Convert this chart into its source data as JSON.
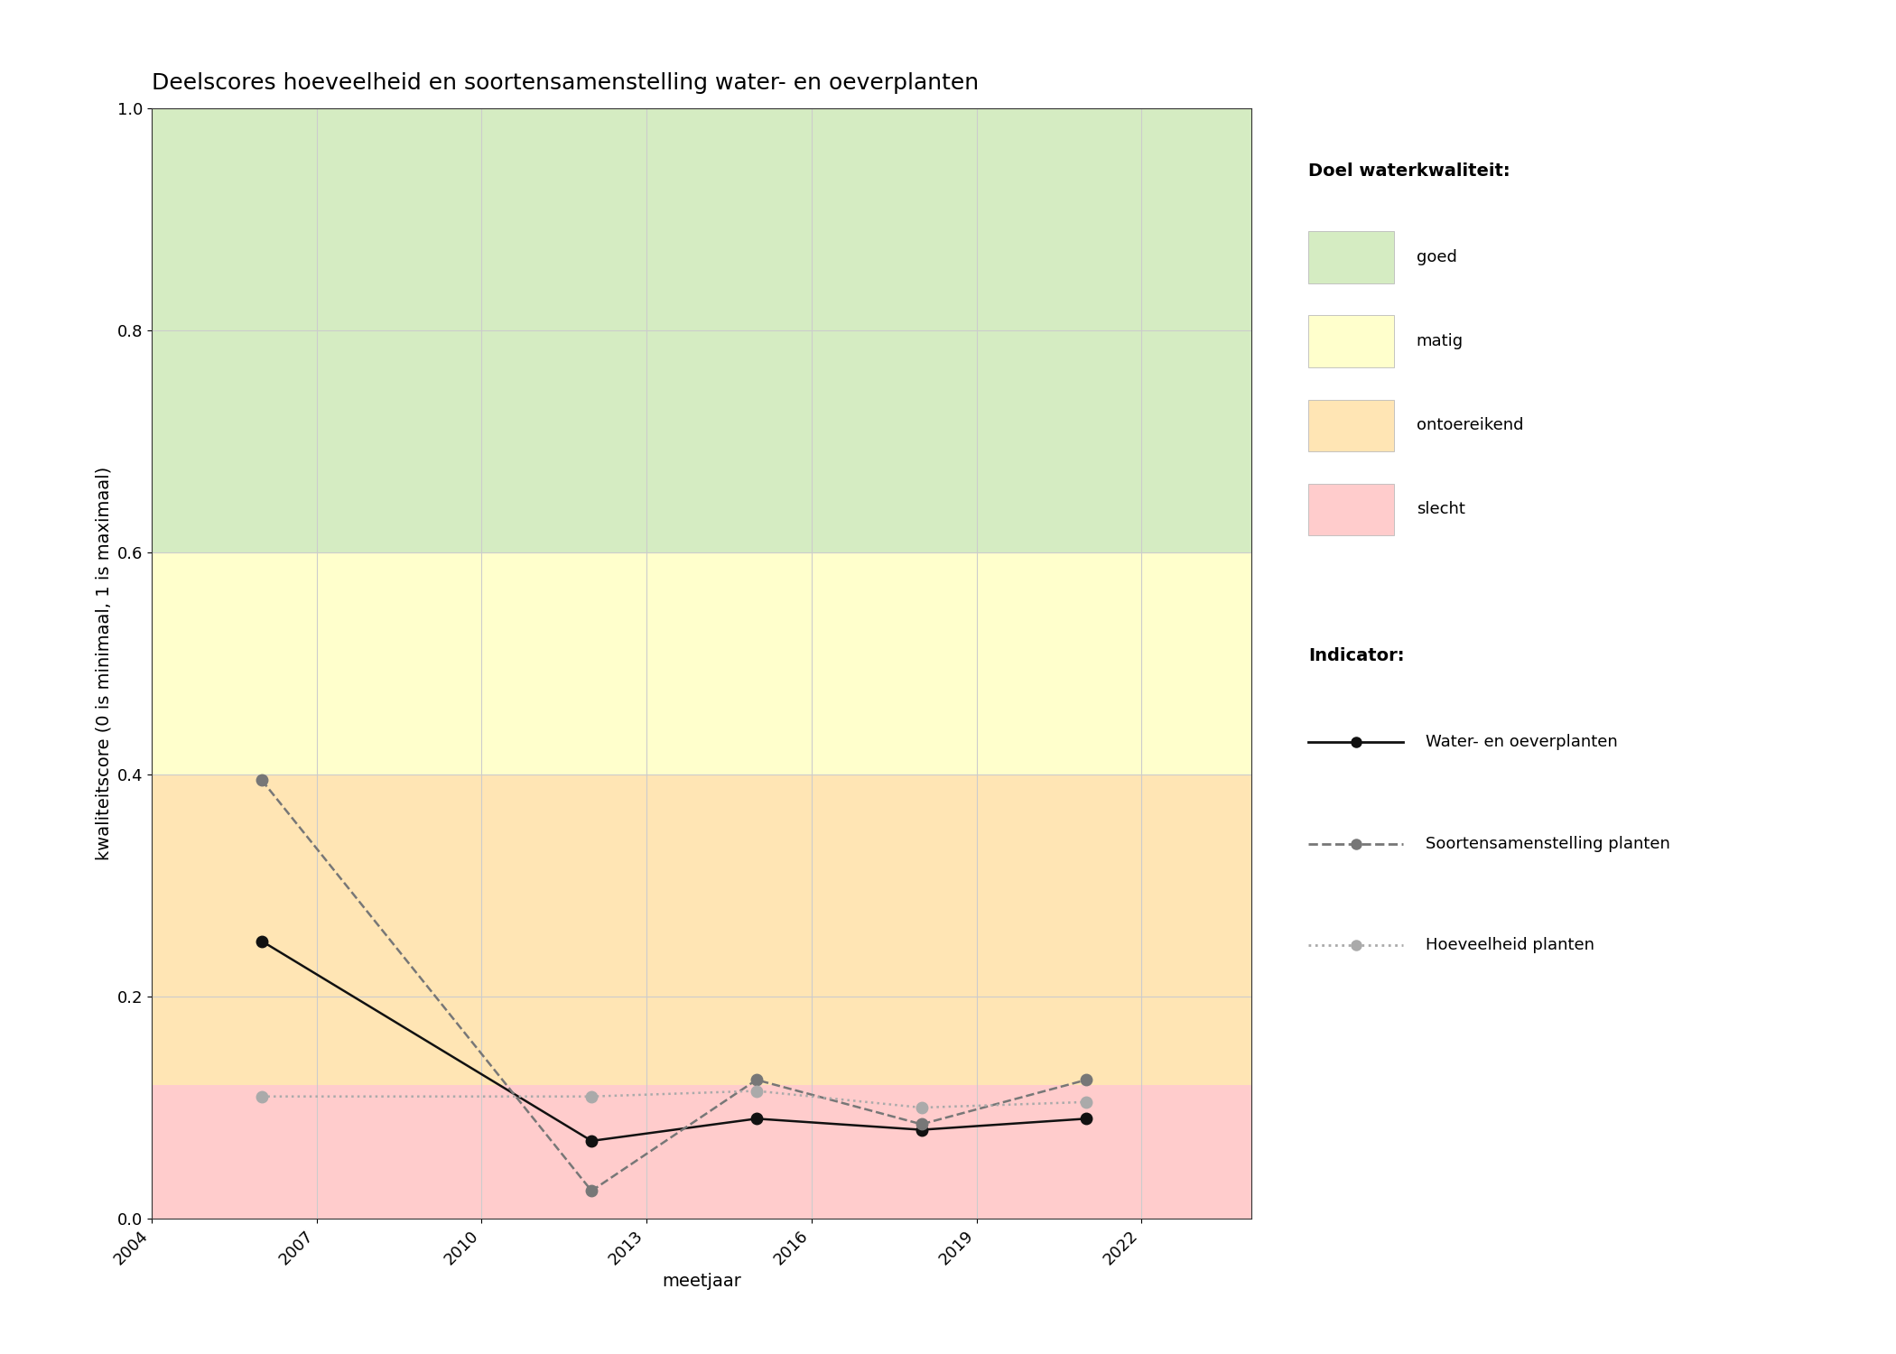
{
  "title": "Deelscores hoeveelheid en soortensamenstelling water- en oeverplanten",
  "xlabel": "meetjaar",
  "ylabel": "kwaliteitscore (0 is minimaal, 1 is maximaal)",
  "ylim": [
    0.0,
    1.0
  ],
  "xlim": [
    2004,
    2024
  ],
  "xticks": [
    2004,
    2007,
    2010,
    2013,
    2016,
    2019,
    2022
  ],
  "yticks": [
    0.0,
    0.2,
    0.4,
    0.6,
    0.8,
    1.0
  ],
  "background_color": "#ffffff",
  "plot_bg_color": "#ffffff",
  "grid_color": "#cccccc",
  "quality_bands": {
    "goed": {
      "ymin": 0.6,
      "ymax": 1.0,
      "color": "#d5ecc2"
    },
    "matig": {
      "ymin": 0.4,
      "ymax": 0.6,
      "color": "#ffffcc"
    },
    "ontoereikend": {
      "ymin": 0.12,
      "ymax": 0.4,
      "color": "#ffe5b4"
    },
    "slecht": {
      "ymin": 0.0,
      "ymax": 0.12,
      "color": "#ffcccc"
    }
  },
  "series": {
    "water_en_oeverplanten": {
      "years": [
        2006,
        2012,
        2015,
        2018,
        2021
      ],
      "values": [
        0.25,
        0.07,
        0.09,
        0.08,
        0.09
      ],
      "color": "#111111",
      "linestyle": "-",
      "linewidth": 1.8,
      "marker": "o",
      "markersize": 9,
      "markerfacecolor": "#111111",
      "label": "Water- en oeverplanten"
    },
    "soortensamenstelling": {
      "years": [
        2006,
        2012,
        2015,
        2018,
        2021
      ],
      "values": [
        0.395,
        0.025,
        0.125,
        0.085,
        0.125
      ],
      "color": "#777777",
      "linestyle": "--",
      "linewidth": 1.8,
      "marker": "o",
      "markersize": 9,
      "markerfacecolor": "#777777",
      "label": "Soortensamenstelling planten"
    },
    "hoeveelheid": {
      "years": [
        2006,
        2012,
        2015,
        2018,
        2021
      ],
      "values": [
        0.11,
        0.11,
        0.115,
        0.1,
        0.105
      ],
      "color": "#aaaaaa",
      "linestyle": ":",
      "linewidth": 1.8,
      "marker": "o",
      "markersize": 9,
      "markerfacecolor": "#aaaaaa",
      "label": "Hoeveelheid planten"
    }
  },
  "legend_quality_title": "Doel waterkwaliteit:",
  "legend_indicator_title": "Indicator:",
  "legend_quality_items": [
    {
      "label": "goed",
      "color": "#d5ecc2"
    },
    {
      "label": "matig",
      "color": "#ffffcc"
    },
    {
      "label": "ontoereikend",
      "color": "#ffe5b4"
    },
    {
      "label": "slecht",
      "color": "#ffcccc"
    }
  ],
  "indicator_items": [
    {
      "label": "Water- en oeverplanten",
      "color": "#111111",
      "linestyle": "-",
      "markercolor": "#111111"
    },
    {
      "label": "Soortensamenstelling planten",
      "color": "#777777",
      "linestyle": "--",
      "markercolor": "#777777"
    },
    {
      "label": "Hoeveelheid planten",
      "color": "#aaaaaa",
      "linestyle": ":",
      "markercolor": "#aaaaaa"
    }
  ],
  "title_fontsize": 18,
  "axis_label_fontsize": 14,
  "tick_fontsize": 13,
  "legend_fontsize": 13
}
